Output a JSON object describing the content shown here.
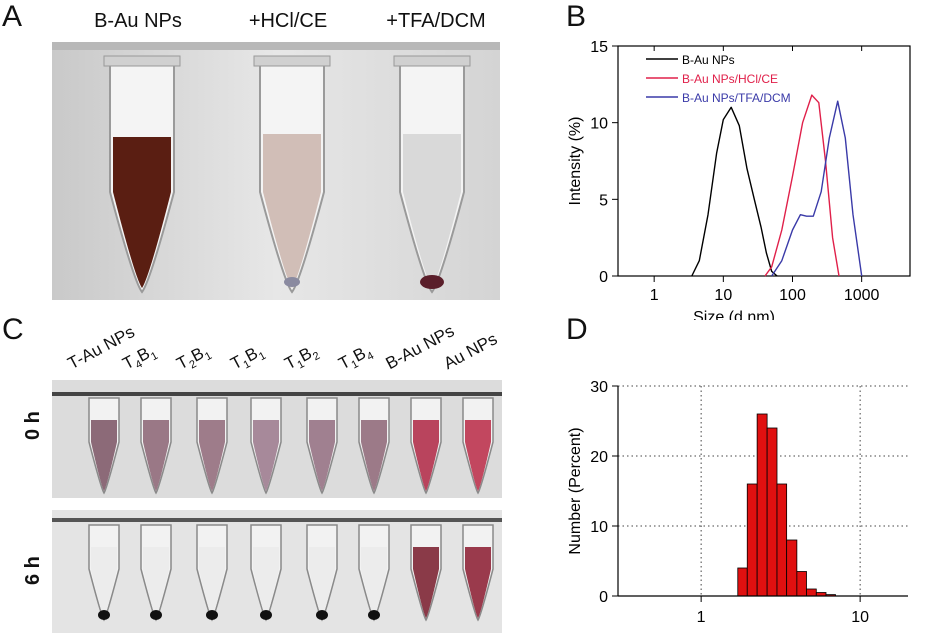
{
  "panels": {
    "a": "A",
    "b": "B",
    "c": "C",
    "d": "D"
  },
  "panel_a": {
    "tube_labels": [
      "B-Au NPs",
      "+HCl/CE",
      "+TFA/DCM"
    ],
    "tube_colors": [
      "#5a1e12",
      "#cdb8b0",
      "#d6d6d6"
    ]
  },
  "panel_c": {
    "sample_labels": [
      {
        "base": "T-Au NPs"
      },
      {
        "base": "T",
        "sub1": "4",
        "mid": "B",
        "sub2": "1"
      },
      {
        "base": "T",
        "sub1": "2",
        "mid": "B",
        "sub2": "1"
      },
      {
        "base": "T",
        "sub1": "1",
        "mid": "B",
        "sub2": "1"
      },
      {
        "base": "T",
        "sub1": "1",
        "mid": "B",
        "sub2": "2"
      },
      {
        "base": "T",
        "sub1": "1",
        "mid": "B",
        "sub2": "4"
      },
      {
        "base": "B-Au NPs"
      },
      {
        "base": "Au NPs"
      }
    ],
    "row_labels": [
      "0 h",
      "6 h"
    ],
    "row0_colors": [
      "#8c6a78",
      "#9a7886",
      "#9e7c8a",
      "#a7899a",
      "#a08090",
      "#9c7a88",
      "#b9445d",
      "#c2475f"
    ],
    "row1_colors": [
      "#ececec",
      "#ececec",
      "#ececec",
      "#ececec",
      "#ececec",
      "#ececec",
      "#8a3a48",
      "#9a3a4c"
    ]
  },
  "chart_data": [
    {
      "type": "line",
      "panel": "B",
      "xlabel": "Size (d.nm)",
      "ylabel": "Intensity (%)",
      "xscale": "log",
      "xlim": [
        0.3,
        5000
      ],
      "ylim": [
        0,
        15
      ],
      "xticks": [
        1,
        10,
        100,
        1000
      ],
      "xtick_labels": [
        "1",
        "10",
        "100",
        "1000"
      ],
      "yticks": [
        0,
        5,
        10,
        15
      ],
      "ytick_labels": [
        "0",
        "5",
        "10",
        "15"
      ],
      "grid": false,
      "legend": "top-right",
      "series": [
        {
          "name": "B-Au NPs",
          "color": "#000000",
          "x": [
            3.5,
            4.5,
            6,
            8,
            10,
            13,
            17,
            22,
            28,
            35,
            42,
            50,
            60
          ],
          "y": [
            0,
            1,
            4,
            8,
            10.2,
            11,
            9.8,
            7,
            5,
            3.2,
            1.5,
            0.3,
            0
          ]
        },
        {
          "name": "B-Au NPs/HCl/CE",
          "color": "#e0204a",
          "x": [
            40,
            50,
            70,
            100,
            140,
            190,
            240,
            300,
            380,
            470
          ],
          "y": [
            0,
            0.6,
            3,
            6.5,
            10,
            11.8,
            11.3,
            7.5,
            2.5,
            0
          ]
        },
        {
          "name": "B-Au NPs/TFA/DCM",
          "color": "#3a3aa8",
          "x": [
            50,
            70,
            100,
            130,
            160,
            200,
            260,
            340,
            450,
            580,
            750,
            1000
          ],
          "y": [
            0,
            1,
            3,
            4,
            3.9,
            3.9,
            5.5,
            9,
            11.4,
            9,
            4,
            0
          ]
        }
      ]
    },
    {
      "type": "bar",
      "panel": "D",
      "ylabel": "Number (Percent)",
      "xscale": "log",
      "xlim": [
        0.3,
        20
      ],
      "ylim": [
        0,
        30
      ],
      "xticks": [
        1,
        10
      ],
      "xtick_labels": [
        "1",
        "10"
      ],
      "yticks": [
        0,
        10,
        20,
        30
      ],
      "ytick_labels": [
        "0",
        "10",
        "20",
        "30"
      ],
      "grid": true,
      "bar_color": "#e01010",
      "bins": [
        {
          "x0": 1.7,
          "x1": 1.95,
          "value": 4
        },
        {
          "x0": 1.95,
          "x1": 2.25,
          "value": 16
        },
        {
          "x0": 2.25,
          "x1": 2.6,
          "value": 26
        },
        {
          "x0": 2.6,
          "x1": 3.0,
          "value": 24
        },
        {
          "x0": 3.0,
          "x1": 3.45,
          "value": 16
        },
        {
          "x0": 3.45,
          "x1": 4.0,
          "value": 8
        },
        {
          "x0": 4.0,
          "x1": 4.6,
          "value": 3.5
        },
        {
          "x0": 4.6,
          "x1": 5.3,
          "value": 1
        },
        {
          "x0": 5.3,
          "x1": 6.1,
          "value": 0.5
        },
        {
          "x0": 6.1,
          "x1": 7.0,
          "value": 0.2
        }
      ]
    }
  ]
}
